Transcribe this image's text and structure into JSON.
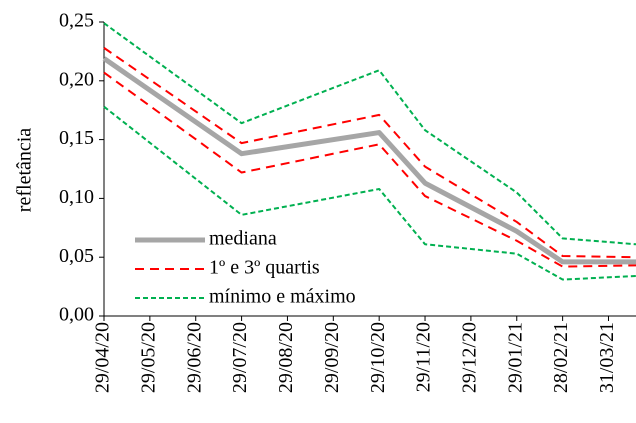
{
  "chart_data": {
    "type": "line",
    "y_label": "refletância",
    "x": [
      0,
      3,
      6,
      7,
      9,
      10,
      11.6
    ],
    "xlim": [
      0,
      11.6
    ],
    "xticks": [
      {
        "value": 0,
        "label": "29/04/20"
      },
      {
        "value": 1,
        "label": "29/05/20"
      },
      {
        "value": 2,
        "label": "29/06/20"
      },
      {
        "value": 3,
        "label": "29/07/20"
      },
      {
        "value": 4,
        "label": "29/08/20"
      },
      {
        "value": 5,
        "label": "29/09/20"
      },
      {
        "value": 6,
        "label": "29/10/20"
      },
      {
        "value": 7,
        "label": "29/11/20"
      },
      {
        "value": 8,
        "label": "29/12/20"
      },
      {
        "value": 9,
        "label": "29/01/21"
      },
      {
        "value": 10,
        "label": "28/02/21"
      },
      {
        "value": 11,
        "label": "31/03/21"
      }
    ],
    "ylim": [
      0,
      0.25
    ],
    "yticks": [
      {
        "value": 0,
        "label": "0,00"
      },
      {
        "value": 0.05,
        "label": "0,05"
      },
      {
        "value": 0.1,
        "label": "0,10"
      },
      {
        "value": 0.15,
        "label": "0,15"
      },
      {
        "value": 0.2,
        "label": "0,20"
      },
      {
        "value": 0.25,
        "label": "0,25"
      }
    ],
    "grid": false,
    "legend": "lower-left",
    "series": [
      {
        "name": "mediana",
        "color": "#a6a6a6",
        "width": 5,
        "dash": "none",
        "values": [
          0.219,
          0.138,
          0.156,
          0.113,
          0.072,
          0.046,
          0.046
        ]
      },
      {
        "name": "1º e 3º quartis",
        "color": "#ff0000",
        "width": 2,
        "dash": "9,6",
        "lower": [
          0.207,
          0.122,
          0.146,
          0.102,
          0.064,
          0.042,
          0.043
        ],
        "upper": [
          0.228,
          0.147,
          0.171,
          0.127,
          0.08,
          0.051,
          0.05
        ]
      },
      {
        "name": "mínimo e máximo",
        "color": "#00b050",
        "width": 2,
        "dash": "5,3",
        "lower": [
          0.178,
          0.086,
          0.108,
          0.061,
          0.053,
          0.031,
          0.034
        ],
        "upper": [
          0.249,
          0.164,
          0.209,
          0.158,
          0.105,
          0.066,
          0.061
        ]
      }
    ]
  }
}
